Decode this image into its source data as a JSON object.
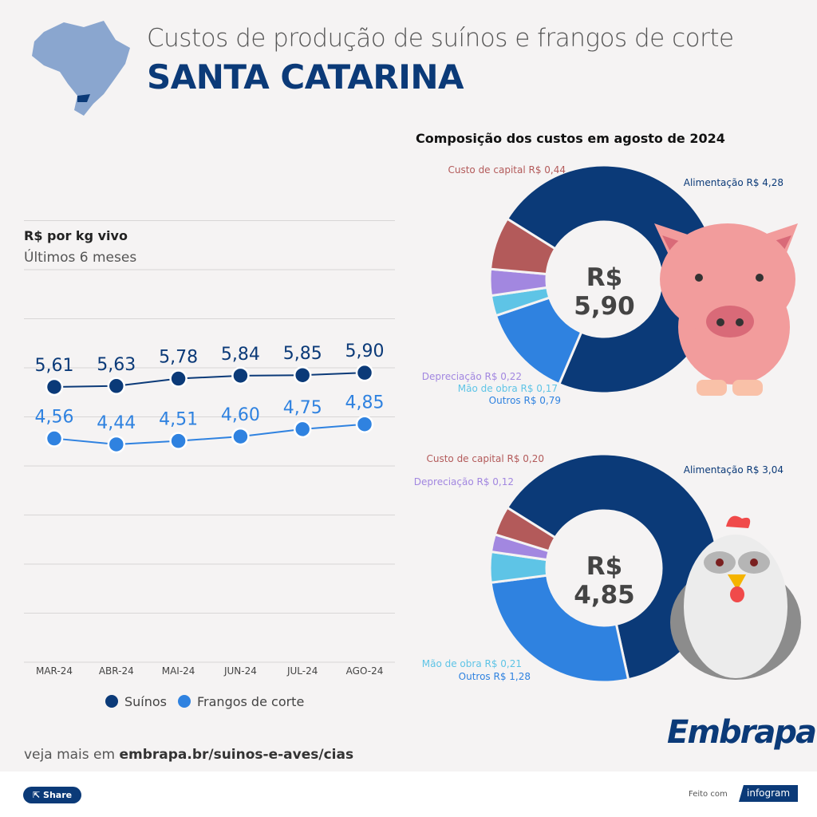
{
  "header": {
    "title": "Custos de produção de suínos e frangos de corte",
    "state": "SANTA CATARINA"
  },
  "colors": {
    "suinos": "#0b3a78",
    "frangos": "#2f82e0",
    "alimentacao": "#0b3a78",
    "outros": "#2f82e0",
    "mao_de_obra": "#5ec4e6",
    "depreciacao": "#a287e0",
    "custo_capital": "#b35a5a"
  },
  "chart_data": [
    {
      "type": "line",
      "title": "R$ por kg vivo",
      "subtitle": "Últimos 6 meses",
      "categories": [
        "MAR-24",
        "ABR-24",
        "MAI-24",
        "JUN-24",
        "JUL-24",
        "AGO-24"
      ],
      "ylim": [
        0,
        9
      ],
      "grid": true,
      "legend": "bottom",
      "series": [
        {
          "name": "Suínos",
          "values": [
            5.61,
            5.63,
            5.78,
            5.84,
            5.85,
            5.9
          ],
          "labels": [
            "5,61",
            "5,63",
            "5,78",
            "5,84",
            "5,85",
            "5,90"
          ]
        },
        {
          "name": "Frangos de corte",
          "values": [
            4.56,
            4.44,
            4.51,
            4.6,
            4.75,
            4.85
          ],
          "labels": [
            "4,56",
            "4,44",
            "4,51",
            "4,60",
            "4,75",
            "4,85"
          ]
        }
      ]
    },
    {
      "type": "pie",
      "title": "Composição dos custos em agosto de 2024",
      "center_label": "R$ 5,90",
      "slices": [
        {
          "label": "Alimentação R$ 4,28",
          "value": 4.28,
          "key": "alimentacao"
        },
        {
          "label": "Outros R$ 0,79",
          "value": 0.79,
          "key": "outros"
        },
        {
          "label": "Mão de obra R$ 0,17",
          "value": 0.17,
          "key": "mao_de_obra"
        },
        {
          "label": "Depreciação R$ 0,22",
          "value": 0.22,
          "key": "depreciacao"
        },
        {
          "label": "Custo de capital R$ 0,44",
          "value": 0.44,
          "key": "custo_capital"
        }
      ]
    },
    {
      "type": "pie",
      "center_label": "R$ 4,85",
      "slices": [
        {
          "label": "Alimentação R$ 3,04",
          "value": 3.04,
          "key": "alimentacao"
        },
        {
          "label": "Outros R$ 1,28",
          "value": 1.28,
          "key": "outros"
        },
        {
          "label": "Mão de obra R$ 0,21",
          "value": 0.21,
          "key": "mao_de_obra"
        },
        {
          "label": "Depreciação R$ 0,12",
          "value": 0.12,
          "key": "depreciacao"
        },
        {
          "label": "Custo de capital R$ 0,20",
          "value": 0.2,
          "key": "custo_capital"
        }
      ]
    }
  ],
  "more": {
    "prefix": "veja mais em ",
    "link": "embrapa.br/suinos-e-aves/cias"
  },
  "logo": "Embrapa",
  "footer": {
    "share": "Share",
    "made_with": "Feito com",
    "brand": "infogram"
  }
}
